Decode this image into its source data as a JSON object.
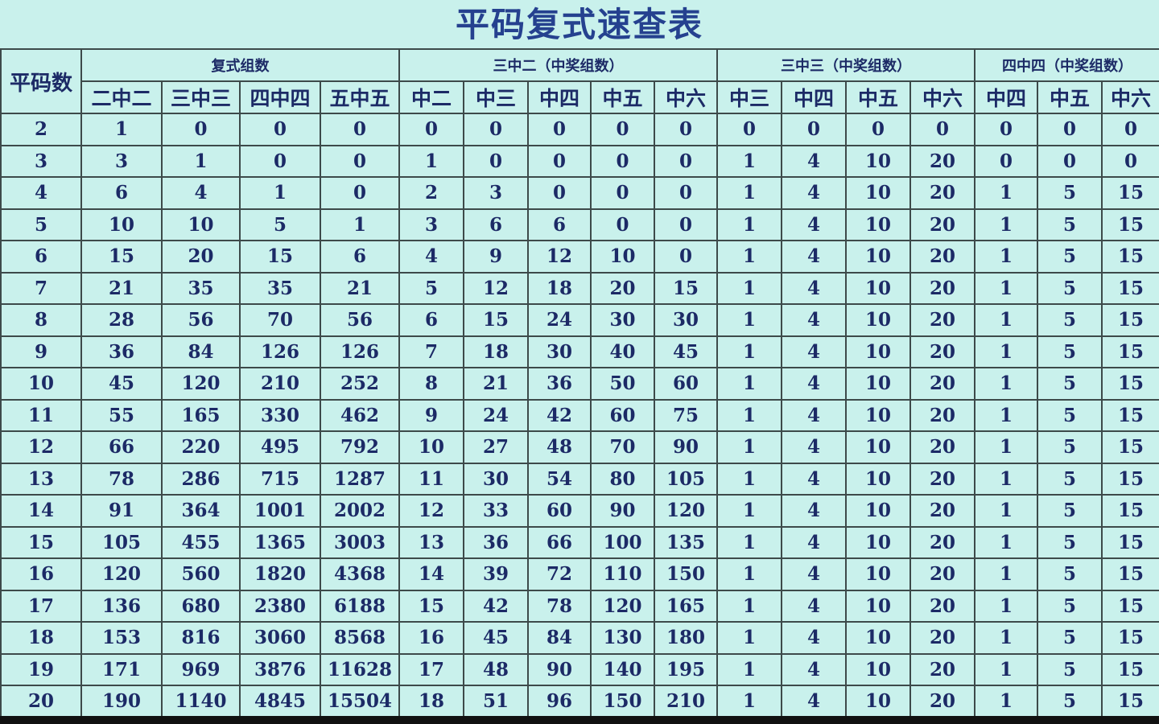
{
  "title": "平码复式速查表",
  "row_header": "平码数",
  "groups": [
    {
      "label": "复式组数",
      "cols": [
        "二中二",
        "三中三",
        "四中四",
        "五中五"
      ]
    },
    {
      "label": "三中二（中奖组数）",
      "cols": [
        "中二",
        "中三",
        "中四",
        "中五",
        "中六"
      ]
    },
    {
      "label": "三中三（中奖组数）",
      "cols": [
        "中三",
        "中四",
        "中五",
        "中六"
      ]
    },
    {
      "label": "四中四（中奖组数）",
      "cols": [
        "中四",
        "中五",
        "中六"
      ]
    }
  ],
  "colors": {
    "background": "#c9f1ec",
    "text": "#1c2a66",
    "title": "#25418f",
    "grid": "#3d4a4a"
  },
  "rows": [
    [
      "2",
      "1",
      "0",
      "0",
      "0",
      "0",
      "0",
      "0",
      "0",
      "0",
      "0",
      "0",
      "0",
      "0",
      "0",
      "0",
      "0"
    ],
    [
      "3",
      "3",
      "1",
      "0",
      "0",
      "1",
      "0",
      "0",
      "0",
      "0",
      "1",
      "4",
      "10",
      "20",
      "0",
      "0",
      "0"
    ],
    [
      "4",
      "6",
      "4",
      "1",
      "0",
      "2",
      "3",
      "0",
      "0",
      "0",
      "1",
      "4",
      "10",
      "20",
      "1",
      "5",
      "15"
    ],
    [
      "5",
      "10",
      "10",
      "5",
      "1",
      "3",
      "6",
      "6",
      "0",
      "0",
      "1",
      "4",
      "10",
      "20",
      "1",
      "5",
      "15"
    ],
    [
      "6",
      "15",
      "20",
      "15",
      "6",
      "4",
      "9",
      "12",
      "10",
      "0",
      "1",
      "4",
      "10",
      "20",
      "1",
      "5",
      "15"
    ],
    [
      "7",
      "21",
      "35",
      "35",
      "21",
      "5",
      "12",
      "18",
      "20",
      "15",
      "1",
      "4",
      "10",
      "20",
      "1",
      "5",
      "15"
    ],
    [
      "8",
      "28",
      "56",
      "70",
      "56",
      "6",
      "15",
      "24",
      "30",
      "30",
      "1",
      "4",
      "10",
      "20",
      "1",
      "5",
      "15"
    ],
    [
      "9",
      "36",
      "84",
      "126",
      "126",
      "7",
      "18",
      "30",
      "40",
      "45",
      "1",
      "4",
      "10",
      "20",
      "1",
      "5",
      "15"
    ],
    [
      "10",
      "45",
      "120",
      "210",
      "252",
      "8",
      "21",
      "36",
      "50",
      "60",
      "1",
      "4",
      "10",
      "20",
      "1",
      "5",
      "15"
    ],
    [
      "11",
      "55",
      "165",
      "330",
      "462",
      "9",
      "24",
      "42",
      "60",
      "75",
      "1",
      "4",
      "10",
      "20",
      "1",
      "5",
      "15"
    ],
    [
      "12",
      "66",
      "220",
      "495",
      "792",
      "10",
      "27",
      "48",
      "70",
      "90",
      "1",
      "4",
      "10",
      "20",
      "1",
      "5",
      "15"
    ],
    [
      "13",
      "78",
      "286",
      "715",
      "1287",
      "11",
      "30",
      "54",
      "80",
      "105",
      "1",
      "4",
      "10",
      "20",
      "1",
      "5",
      "15"
    ],
    [
      "14",
      "91",
      "364",
      "1001",
      "2002",
      "12",
      "33",
      "60",
      "90",
      "120",
      "1",
      "4",
      "10",
      "20",
      "1",
      "5",
      "15"
    ],
    [
      "15",
      "105",
      "455",
      "1365",
      "3003",
      "13",
      "36",
      "66",
      "100",
      "135",
      "1",
      "4",
      "10",
      "20",
      "1",
      "5",
      "15"
    ],
    [
      "16",
      "120",
      "560",
      "1820",
      "4368",
      "14",
      "39",
      "72",
      "110",
      "150",
      "1",
      "4",
      "10",
      "20",
      "1",
      "5",
      "15"
    ],
    [
      "17",
      "136",
      "680",
      "2380",
      "6188",
      "15",
      "42",
      "78",
      "120",
      "165",
      "1",
      "4",
      "10",
      "20",
      "1",
      "5",
      "15"
    ],
    [
      "18",
      "153",
      "816",
      "3060",
      "8568",
      "16",
      "45",
      "84",
      "130",
      "180",
      "1",
      "4",
      "10",
      "20",
      "1",
      "5",
      "15"
    ],
    [
      "19",
      "171",
      "969",
      "3876",
      "11628",
      "17",
      "48",
      "90",
      "140",
      "195",
      "1",
      "4",
      "10",
      "20",
      "1",
      "5",
      "15"
    ],
    [
      "20",
      "190",
      "1140",
      "4845",
      "15504",
      "18",
      "51",
      "96",
      "150",
      "210",
      "1",
      "4",
      "10",
      "20",
      "1",
      "5",
      "15"
    ]
  ]
}
